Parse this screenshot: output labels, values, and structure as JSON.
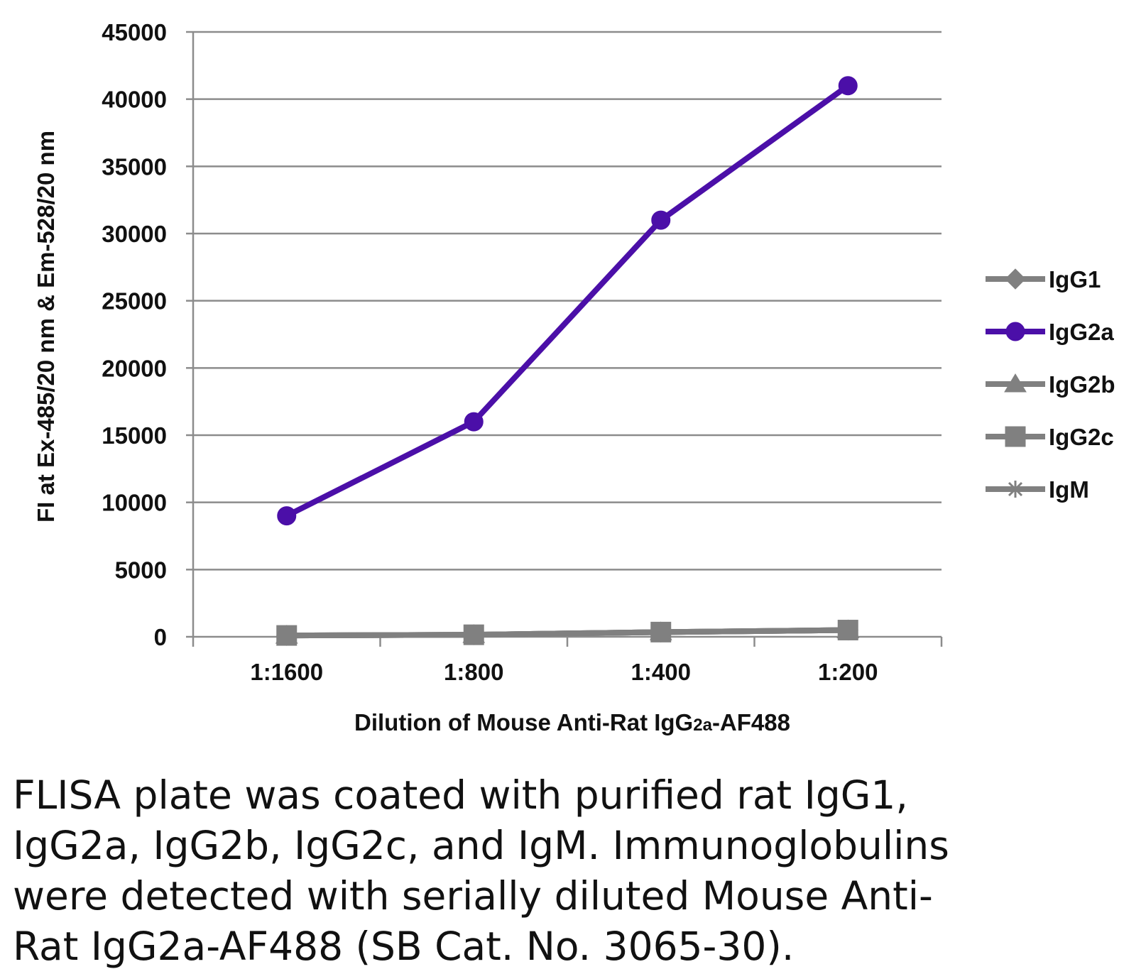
{
  "chart_data": {
    "type": "line",
    "categories": [
      "1:1600",
      "1:800",
      "1:400",
      "1:200"
    ],
    "series": [
      {
        "name": "IgG1",
        "values": [
          100,
          150,
          350,
          500
        ],
        "color": "#808080",
        "marker": "diamond"
      },
      {
        "name": "IgG2a",
        "values": [
          9000,
          16000,
          31000,
          41000
        ],
        "color": "#4B0FA8",
        "marker": "circle"
      },
      {
        "name": "IgG2b",
        "values": [
          100,
          150,
          350,
          500
        ],
        "color": "#808080",
        "marker": "triangle"
      },
      {
        "name": "IgG2c",
        "values": [
          100,
          150,
          350,
          500
        ],
        "color": "#808080",
        "marker": "square"
      },
      {
        "name": "IgM",
        "values": [
          100,
          150,
          350,
          500
        ],
        "color": "#808080",
        "marker": "star"
      }
    ],
    "xlabel": "Dilution of Mouse Anti-Rat IgG2a-AF488",
    "ylabel": "FI at Ex-485/20 nm & Em-528/20 nm",
    "ylim": [
      0,
      45000
    ],
    "yticks": [
      "0",
      "5000",
      "10000",
      "15000",
      "20000",
      "25000",
      "30000",
      "35000",
      "40000",
      "45000"
    ],
    "grid": true,
    "legend": "right"
  },
  "caption": {
    "lines": [
      "FLISA plate was coated with purified rat IgG1,",
      "IgG2a, IgG2b, IgG2c, and IgM.  Immunoglobulins",
      "were detected with serially diluted Mouse Anti-",
      "Rat IgG2a-AF488 (SB Cat. No. 3065-30)."
    ]
  }
}
